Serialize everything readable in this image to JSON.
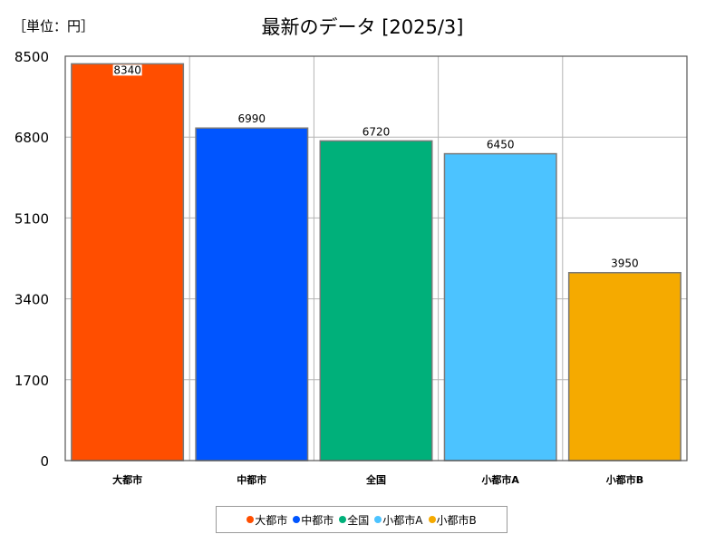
{
  "unit_label": "［単位：円］",
  "chart_data": {
    "type": "bar",
    "title": "最新のデータ [2025/3]",
    "categories": [
      "大都市",
      "中都市",
      "全国",
      "小都市A",
      "小都市B"
    ],
    "values": [
      8340,
      6990,
      6720,
      6450,
      3950
    ],
    "data_labels": [
      "8340",
      "6990",
      "6720",
      "6450",
      "3950"
    ],
    "colors": [
      "#ff4e00",
      "#0055ff",
      "#00b07a",
      "#4cc3ff",
      "#f5aa00"
    ],
    "yticks": [
      "0",
      "1700",
      "3400",
      "5100",
      "6800",
      "8500"
    ],
    "ylim": [
      0,
      8500
    ],
    "grid": true,
    "legend_position": "bottom",
    "legend": [
      "大都市",
      "中都市",
      "全国",
      "小都市A",
      "小都市B"
    ]
  }
}
